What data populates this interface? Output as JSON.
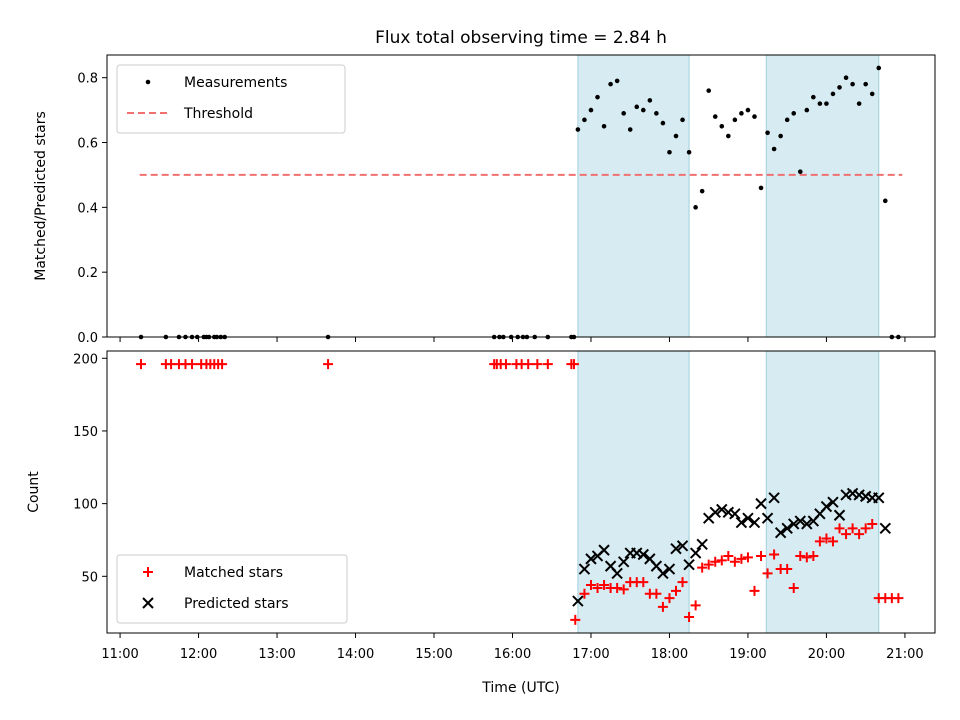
{
  "chart_data": [
    {
      "type": "scatter",
      "title": "Flux total observing time = 2.84 h",
      "xlabel": "",
      "ylabel": "Matched/Predicted stars",
      "ylim": [
        0,
        0.87
      ],
      "xlim": [
        "10:50",
        "21:23"
      ],
      "yticks": [
        0.0,
        0.2,
        0.4,
        0.6,
        0.8
      ],
      "ytick_labels": [
        "0.0",
        "0.2",
        "0.4",
        "0.6",
        "0.8"
      ],
      "legend_position": "upper-left",
      "shaded_intervals": [
        [
          "16:50",
          "18:15"
        ],
        [
          "19:14",
          "20:40"
        ]
      ],
      "threshold": {
        "name": "Threshold",
        "value": 0.5,
        "x_range": [
          "11:15",
          "20:58"
        ],
        "color": "#f07070"
      },
      "series": [
        {
          "name": "Measurements",
          "color": "#000000",
          "x": [
            "11:16",
            "11:35",
            "11:45",
            "11:50",
            "11:55",
            "11:59",
            "12:04",
            "12:06",
            "12:08",
            "12:12",
            "12:14",
            "12:17",
            "12:20",
            "13:39",
            "15:46",
            "15:50",
            "15:53",
            "15:59",
            "16:04",
            "16:08",
            "16:11",
            "16:17",
            "16:27",
            "16:45",
            "16:47",
            "16:50",
            "16:55",
            "17:00",
            "17:05",
            "17:10",
            "17:15",
            "17:20",
            "17:25",
            "17:30",
            "17:35",
            "17:40",
            "17:45",
            "17:50",
            "17:55",
            "18:00",
            "18:05",
            "18:10",
            "18:15",
            "18:20",
            "18:25",
            "18:30",
            "18:35",
            "18:40",
            "18:45",
            "18:50",
            "18:55",
            "19:00",
            "19:05",
            "19:10",
            "19:15",
            "19:20",
            "19:25",
            "19:30",
            "19:35",
            "19:40",
            "19:45",
            "19:50",
            "19:55",
            "20:00",
            "20:05",
            "20:10",
            "20:15",
            "20:20",
            "20:25",
            "20:30",
            "20:35",
            "20:40",
            "20:45",
            "20:50",
            "20:55"
          ],
          "y": [
            0,
            0,
            0,
            0,
            0,
            0,
            0,
            0,
            0,
            0,
            0,
            0,
            0,
            0,
            0,
            0,
            0,
            0,
            0,
            0,
            0,
            0,
            0,
            0,
            0,
            0.64,
            0.67,
            0.7,
            0.74,
            0.65,
            0.78,
            0.79,
            0.69,
            0.64,
            0.71,
            0.7,
            0.73,
            0.69,
            0.66,
            0.57,
            0.62,
            0.67,
            0.57,
            0.4,
            0.45,
            0.76,
            0.68,
            0.65,
            0.62,
            0.67,
            0.69,
            0.7,
            0.68,
            0.46,
            0.63,
            0.58,
            0.62,
            0.67,
            0.69,
            0.51,
            0.7,
            0.74,
            0.72,
            0.72,
            0.75,
            0.77,
            0.8,
            0.78,
            0.72,
            0.78,
            0.75,
            0.83,
            0.42,
            0,
            0
          ]
        }
      ]
    },
    {
      "type": "scatter",
      "title": "",
      "xlabel": "Time (UTC)",
      "ylabel": "Count",
      "ylim": [
        11,
        205
      ],
      "xlim": [
        "10:50",
        "21:23"
      ],
      "xticks": [
        "11:00",
        "12:00",
        "13:00",
        "14:00",
        "15:00",
        "16:00",
        "17:00",
        "18:00",
        "19:00",
        "20:00",
        "21:00"
      ],
      "xtick_labels": [
        "11:00",
        "12:00",
        "13:00",
        "14:00",
        "15:00",
        "16:00",
        "17:00",
        "18:00",
        "19:00",
        "20:00",
        "21:00"
      ],
      "yticks": [
        50,
        100,
        150,
        200
      ],
      "ytick_labels": [
        "50",
        "100",
        "150",
        "200"
      ],
      "legend_position": "lower-left",
      "shaded_intervals": [
        [
          "16:50",
          "18:15"
        ],
        [
          "19:14",
          "20:40"
        ]
      ],
      "series": [
        {
          "name": "Matched stars",
          "marker": "plus",
          "color": "#ff0000",
          "x": [
            "11:16",
            "11:35",
            "11:39",
            "11:45",
            "11:50",
            "11:55",
            "12:02",
            "12:06",
            "12:09",
            "12:12",
            "12:15",
            "12:18",
            "13:39",
            "15:46",
            "15:48",
            "15:51",
            "15:55",
            "16:03",
            "16:07",
            "16:12",
            "16:19",
            "16:27",
            "16:45",
            "16:47",
            "16:48",
            "16:55",
            "17:00",
            "17:05",
            "17:10",
            "17:15",
            "17:20",
            "17:25",
            "17:30",
            "17:35",
            "17:40",
            "17:45",
            "17:50",
            "17:55",
            "18:00",
            "18:05",
            "18:10",
            "18:15",
            "18:20",
            "18:25",
            "18:30",
            "18:35",
            "18:40",
            "18:45",
            "18:50",
            "18:55",
            "19:00",
            "19:05",
            "19:10",
            "19:15",
            "19:20",
            "19:25",
            "19:30",
            "19:35",
            "19:40",
            "19:45",
            "19:50",
            "19:55",
            "20:00",
            "20:05",
            "20:10",
            "20:15",
            "20:20",
            "20:25",
            "20:30",
            "20:35",
            "20:40",
            "20:45",
            "20:50",
            "20:55"
          ],
          "y": [
            196,
            196,
            196,
            196,
            196,
            196,
            196,
            196,
            196,
            196,
            196,
            196,
            196,
            196,
            196,
            196,
            196,
            196,
            196,
            196,
            196,
            196,
            196,
            196,
            20,
            38,
            44,
            42,
            44,
            42,
            42,
            41,
            46,
            46,
            46,
            38,
            38,
            29,
            35,
            40,
            46,
            22,
            30,
            56,
            58,
            60,
            61,
            64,
            60,
            62,
            63,
            40,
            64,
            52,
            65,
            55,
            55,
            42,
            64,
            63,
            64,
            74,
            76,
            74,
            83,
            79,
            83,
            79,
            83,
            86,
            35,
            35,
            35,
            35
          ]
        },
        {
          "name": "Predicted stars",
          "marker": "x",
          "color": "#000000",
          "x": [
            "16:50",
            "16:55",
            "17:00",
            "17:05",
            "17:10",
            "17:15",
            "17:20",
            "17:25",
            "17:30",
            "17:35",
            "17:40",
            "17:45",
            "17:50",
            "17:55",
            "18:00",
            "18:05",
            "18:10",
            "18:15",
            "18:20",
            "18:25",
            "18:30",
            "18:35",
            "18:40",
            "18:45",
            "18:50",
            "18:55",
            "19:00",
            "19:05",
            "19:10",
            "19:15",
            "19:20",
            "19:25",
            "19:30",
            "19:35",
            "19:40",
            "19:45",
            "19:50",
            "19:55",
            "20:00",
            "20:05",
            "20:10",
            "20:15",
            "20:20",
            "20:25",
            "20:30",
            "20:35",
            "20:40",
            "20:45"
          ],
          "y": [
            33,
            55,
            62,
            64,
            68,
            57,
            52,
            60,
            66,
            66,
            65,
            62,
            57,
            52,
            55,
            69,
            71,
            58,
            66,
            72,
            90,
            94,
            96,
            94,
            93,
            87,
            90,
            87,
            100,
            90,
            104,
            80,
            83,
            86,
            88,
            86,
            88,
            93,
            98,
            101,
            92,
            106,
            107,
            106,
            105,
            104,
            104,
            83
          ]
        }
      ]
    }
  ]
}
